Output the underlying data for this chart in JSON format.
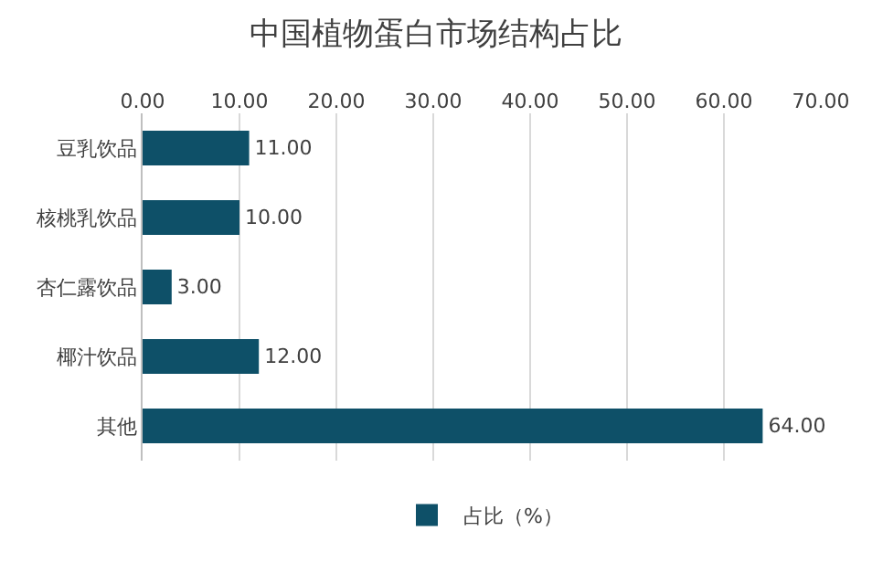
{
  "chart_data": {
    "type": "bar",
    "orientation": "horizontal",
    "title": "中国植物蛋白市场结构占比",
    "categories": [
      "豆乳饮品",
      "核桃乳饮品",
      "杏仁露饮品",
      "椰汁饮品",
      "其他"
    ],
    "series": [
      {
        "name": "占比（%）",
        "color": "#0e5068",
        "values": [
          11,
          10,
          3,
          12,
          64
        ],
        "value_labels": [
          "11.00",
          "10.00",
          "3.00",
          "12.00",
          "64.00"
        ]
      }
    ],
    "xlim": [
      0,
      70
    ],
    "xticks": [
      {
        "value": 0,
        "label": "0.00"
      },
      {
        "value": 10,
        "label": "10.00"
      },
      {
        "value": 20,
        "label": "20.00"
      },
      {
        "value": 30,
        "label": "30.00"
      },
      {
        "value": 40,
        "label": "40.00"
      },
      {
        "value": 50,
        "label": "50.00"
      },
      {
        "value": 60,
        "label": "60.00"
      },
      {
        "value": 70,
        "label": "70.00"
      }
    ],
    "grid": "x",
    "legend": "bottom"
  }
}
